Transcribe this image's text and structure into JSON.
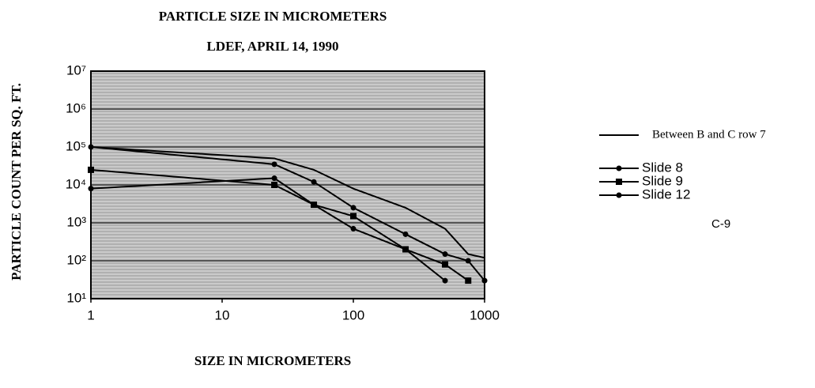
{
  "chart_data": {
    "type": "line",
    "title": "PARTICLE SIZE IN MICROMETERS",
    "subtitle": "LDEF, APRIL 14, 1990",
    "x_label": "SIZE IN MICROMETERS",
    "y_label": "PARTICLE COUNT PER SQ. FT.",
    "annotation": "C-9",
    "log_x": true,
    "log_y": true,
    "grid": true,
    "legend": "right",
    "xlim": [
      1,
      1000
    ],
    "ylim": [
      10,
      10000000
    ],
    "xticks": [
      1,
      10,
      100,
      1000
    ],
    "yticks": [
      {
        "value": 10,
        "label": "10¹"
      },
      {
        "value": 100,
        "label": "10²"
      },
      {
        "value": 1000,
        "label": "10³"
      },
      {
        "value": 10000,
        "label": "10⁴"
      },
      {
        "value": 100000,
        "label": "10⁵"
      },
      {
        "value": 1000000,
        "label": "10⁶"
      },
      {
        "value": 10000000,
        "label": "10⁷"
      }
    ],
    "series": [
      {
        "name": "Between B and C row 7",
        "color": "#000000",
        "marker": "none",
        "x": [
          1,
          25,
          50,
          100,
          250,
          500,
          750,
          1000
        ],
        "values": [
          100000,
          50000,
          25000,
          8000,
          2500,
          700,
          150,
          120
        ]
      },
      {
        "name": "Slide 8",
        "color": "#000000",
        "marker": "circle",
        "x": [
          1,
          25,
          50,
          100,
          250,
          500,
          750,
          1000
        ],
        "values": [
          100000,
          35000,
          12000,
          2500,
          500,
          150,
          100,
          30
        ]
      },
      {
        "name": "Slide 9",
        "color": "#000000",
        "marker": "square",
        "x": [
          1,
          25,
          50,
          100,
          250,
          500,
          750
        ],
        "values": [
          25000,
          10000,
          3000,
          1500,
          200,
          80,
          30
        ]
      },
      {
        "name": "Slide 12",
        "color": "#000000",
        "marker": "circle",
        "x": [
          1,
          25,
          50,
          100,
          250,
          500
        ],
        "values": [
          8000,
          15000,
          3000,
          700,
          200,
          30
        ]
      }
    ]
  }
}
